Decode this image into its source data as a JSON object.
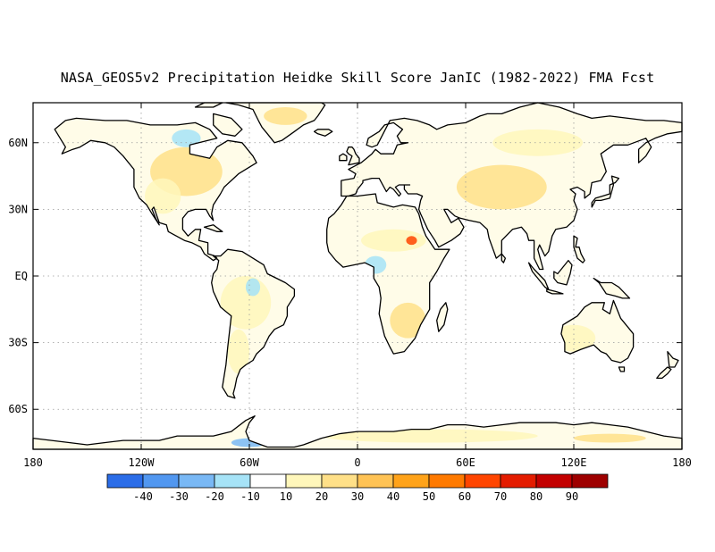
{
  "title": "NASA_GEOS5v2 Precipitation Heidke Skill Score JanIC (1982-2022) FMA Fcst",
  "map": {
    "projection": "cylindrical equidistant",
    "lon_range": [
      -180,
      180
    ],
    "lat_range": [
      -78,
      78
    ],
    "grid": true,
    "lat_labels": [
      {
        "text": "60N",
        "lat": 60
      },
      {
        "text": "30N",
        "lat": 30
      },
      {
        "text": "EQ",
        "lat": 0
      },
      {
        "text": "30S",
        "lat": -30
      },
      {
        "text": "60S",
        "lat": -60
      }
    ],
    "lon_labels": [
      {
        "text": "180",
        "lon": -180
      },
      {
        "text": "120W",
        "lon": -120
      },
      {
        "text": "60W",
        "lon": -60
      },
      {
        "text": "0",
        "lon": 0
      },
      {
        "text": "60E",
        "lon": 60
      },
      {
        "text": "120E",
        "lon": 120
      },
      {
        "text": "180",
        "lon": 180
      }
    ]
  },
  "colorbar": {
    "labels": [
      "-40",
      "-30",
      "-20",
      "-10",
      "10",
      "20",
      "30",
      "40",
      "50",
      "60",
      "70",
      "80",
      "90"
    ],
    "colors": [
      "#2b6de8",
      "#5197f0",
      "#79b8f5",
      "#a6e3f7",
      "#ffffff",
      "#fff7bb",
      "#ffe088",
      "#ffc355",
      "#ffa31a",
      "#ff7a00",
      "#ff4500",
      "#e41c00",
      "#c30000",
      "#9e0000"
    ]
  },
  "skill_regions": [
    {
      "lon": -95,
      "lat": 47,
      "rx": 20,
      "ry": 11,
      "color": "#ffe088"
    },
    {
      "lon": -108,
      "lat": 36,
      "rx": 10,
      "ry": 8,
      "color": "#fff7bb"
    },
    {
      "lon": -40,
      "lat": 72,
      "rx": 12,
      "ry": 4,
      "color": "#ffe088"
    },
    {
      "lon": -62,
      "lat": -12,
      "rx": 14,
      "ry": 12,
      "color": "#fff7bb"
    },
    {
      "lon": -66,
      "lat": -34,
      "rx": 6,
      "ry": 10,
      "color": "#fff7bb"
    },
    {
      "lon": 20,
      "lat": 16,
      "rx": 18,
      "ry": 5,
      "color": "#fff7bb"
    },
    {
      "lon": 30,
      "lat": 16,
      "rx": 3,
      "ry": 2,
      "color": "#ff4500"
    },
    {
      "lon": 28,
      "lat": -20,
      "rx": 10,
      "ry": 8,
      "color": "#ffe088"
    },
    {
      "lon": 80,
      "lat": 40,
      "rx": 25,
      "ry": 10,
      "color": "#ffe088"
    },
    {
      "lon": 100,
      "lat": 60,
      "rx": 25,
      "ry": 6,
      "color": "#fff7bb"
    },
    {
      "lon": 120,
      "lat": -28,
      "rx": 12,
      "ry": 6,
      "color": "#fff7bb"
    },
    {
      "lon": 40,
      "lat": -72,
      "rx": 60,
      "ry": 3,
      "color": "#fff7bb"
    },
    {
      "lon": 140,
      "lat": -73,
      "rx": 20,
      "ry": 2,
      "color": "#ffe088"
    },
    {
      "lon": -95,
      "lat": 62,
      "rx": 8,
      "ry": 4,
      "color": "#a6e3f7"
    },
    {
      "lon": -58,
      "lat": -5,
      "rx": 4,
      "ry": 4,
      "color": "#a6e3f7"
    },
    {
      "lon": 10,
      "lat": 5,
      "rx": 6,
      "ry": 4,
      "color": "#a6e3f7"
    },
    {
      "lon": -60,
      "lat": -75,
      "rx": 10,
      "ry": 2,
      "color": "#79b8f5"
    }
  ]
}
